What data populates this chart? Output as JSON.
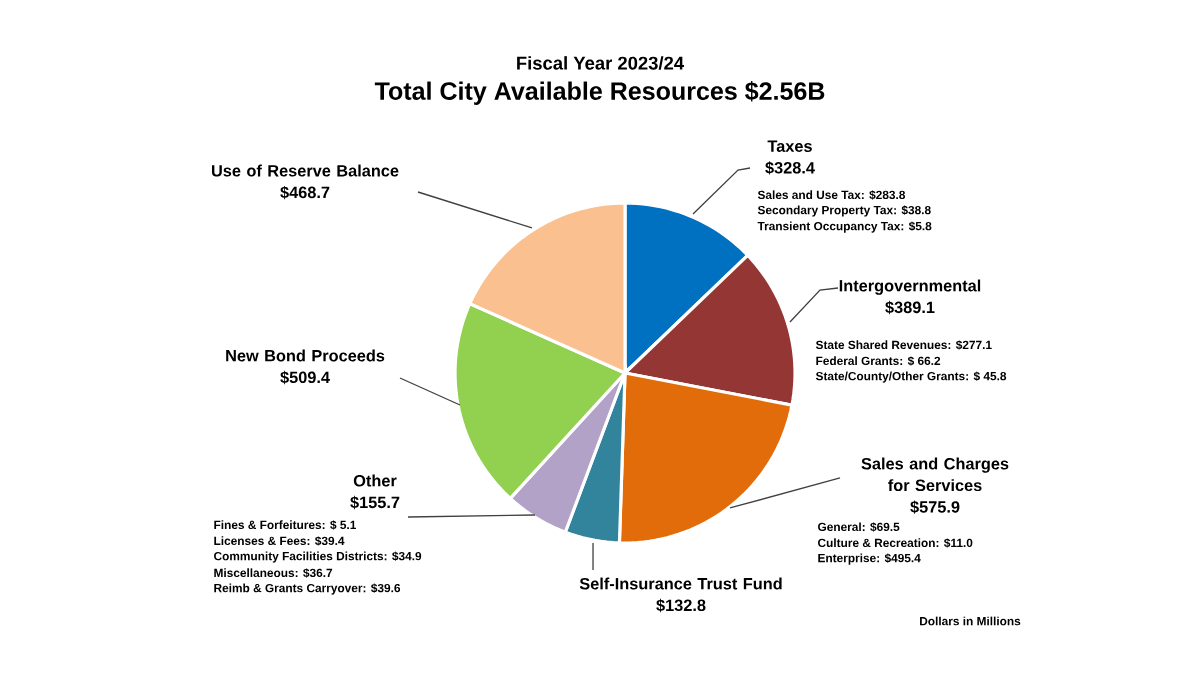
{
  "chart_data": {
    "type": "pie",
    "subtitle": "Fiscal Year 2023/24",
    "title": "Total City Available Resources $2.56B",
    "categories": [
      "Taxes",
      "Intergovernmental",
      "Sales and Charges for Services",
      "Self-Insurance Trust Fund",
      "Other",
      "New Bond Proceeds",
      "Use of Reserve Balance"
    ],
    "values": [
      328.4,
      389.1,
      575.9,
      132.8,
      155.7,
      509.4,
      468.7
    ],
    "value_labels": [
      "$328.4",
      "$389.1",
      "$575.9",
      "$132.8",
      "$155.7",
      "$509.4",
      "$468.7"
    ],
    "colors": [
      "#0070c0",
      "#943634",
      "#e36c0a",
      "#31849b",
      "#b3a2c7",
      "#92d050",
      "#fac090"
    ],
    "annotations": [
      "Sales and Use Tax: $283.8",
      "Secondary Property Tax: $38.8",
      "Transient Occupancy Tax: $5.8",
      "State Shared Revenues: $277.1",
      "Federal Grants: $ 66.2",
      "State/County/Other Grants: $ 45.8",
      "General: $69.5",
      "Culture & Recreation: $11.0",
      "Enterprise: $495.4",
      "Fines & Forfeitures: $ 5.1",
      "Licenses & Fees: $39.4",
      "Community Facilities Districts: $34.9",
      "Miscellaneous: $36.7",
      "Reimb & Grants Carryover: $39.6",
      "Dollars in Millions"
    ]
  }
}
